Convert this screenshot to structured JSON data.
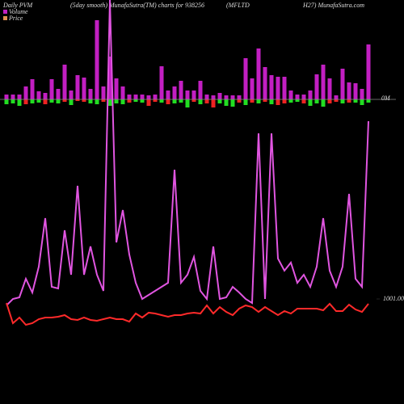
{
  "chart_data": {
    "type": "pvm",
    "title": [
      "Daily PVM",
      "(5day smooth) MunafaSutra(TM) charts for 938256",
      "(MFLTD",
      "H27) MunafaSutra.com"
    ],
    "ylim": [
      0,
      123
    ],
    "yticks": [
      {
        "value": 0,
        "label": "0M"
      }
    ],
    "price_lim": [
      981,
      1041
    ],
    "price_ticks": [
      {
        "value": 1001,
        "label": "1001.00"
      }
    ],
    "y2lim": [
      0,
      490
    ],
    "series": [
      {
        "name": "Volume",
        "color": "#c21fc2",
        "legend_color": "#c21fc2",
        "values": [
          6,
          6,
          6,
          16,
          25,
          10,
          8,
          25,
          13,
          43,
          11,
          30,
          27,
          13,
          98,
          16,
          53,
          26,
          16,
          6,
          6,
          6,
          5,
          6,
          41,
          11,
          16,
          23,
          11,
          11,
          23,
          6,
          5,
          8,
          5,
          5,
          5,
          51,
          26,
          63,
          40,
          30,
          28,
          28,
          11,
          6,
          6,
          11,
          31,
          43,
          26,
          5,
          38,
          21,
          20,
          13,
          68
        ]
      },
      {
        "name": "Price",
        "color": "#ff2a2a",
        "legend_color": "#e09050",
        "values": [
          1000.17,
          996.0,
          997.17,
          995.67,
          996.0,
          996.83,
          997.17,
          997.17,
          997.33,
          997.67,
          996.83,
          996.67,
          997.17,
          996.67,
          996.5,
          996.83,
          997.17,
          996.83,
          996.83,
          996.33,
          998.0,
          997.17,
          998.17,
          998.0,
          997.67,
          997.33,
          997.67,
          997.67,
          998.0,
          998.17,
          998.0,
          999.67,
          998.0,
          999.33,
          998.33,
          997.67,
          999.0,
          999.67,
          999.33,
          998.33,
          999.33,
          998.5,
          997.67,
          998.5,
          998.0,
          999.0,
          999.0,
          999.0,
          999.0,
          998.67,
          1000.0,
          998.5,
          998.5,
          999.83,
          998.83,
          998.33,
          1000.0
        ]
      }
    ],
    "volume_line": {
      "color": "#e055e0",
      "axis": "y2",
      "values": [
        112,
        120,
        122,
        145,
        128,
        160,
        220,
        135,
        133,
        205,
        150,
        260,
        150,
        185,
        150,
        130,
        490,
        190,
        230,
        175,
        140,
        120,
        125,
        130,
        135,
        140,
        280,
        140,
        150,
        172,
        130,
        120,
        185,
        120,
        122,
        135,
        128,
        120,
        115,
        325,
        120,
        325,
        170,
        155,
        165,
        140,
        150,
        135,
        160,
        220,
        155,
        135,
        160,
        250,
        145,
        135,
        340
      ]
    },
    "flow": {
      "values": [
        -6,
        -5,
        -8,
        -6,
        -5,
        -4,
        -6,
        -4,
        -5,
        -3,
        -7,
        -2,
        -3,
        -5,
        -6,
        -3,
        -8,
        -5,
        -6,
        -4,
        -3,
        -4,
        -8,
        -3,
        -4,
        -6,
        -5,
        -4,
        -10,
        -3,
        -6,
        -5,
        -10,
        -5,
        -8,
        -9,
        -4,
        -7,
        -4,
        -5,
        -3,
        -6,
        -7,
        -5,
        -4,
        -3,
        -5,
        -8,
        -5,
        -9,
        -5,
        -3,
        -5,
        -4,
        -4,
        -7,
        -4
      ],
      "colors": [
        "#22dd22",
        "#22dd22",
        "#22dd22",
        "#ee2222",
        "#22dd22",
        "#22dd22",
        "#ee2222",
        "#22dd22",
        "#22dd22",
        "#ee2222",
        "#22dd22",
        "#ee2222",
        "#ee2222",
        "#22dd22",
        "#22dd22",
        "#ee2222",
        "#22dd22",
        "#22dd22",
        "#22dd22",
        "#ee2222",
        "#22dd22",
        "#22dd22",
        "#ee2222",
        "#ee2222",
        "#22dd22",
        "#ee2222",
        "#22dd22",
        "#22dd22",
        "#22dd22",
        "#ee2222",
        "#22dd22",
        "#ee2222",
        "#ee2222",
        "#22dd22",
        "#22dd22",
        "#22dd22",
        "#ee2222",
        "#22dd22",
        "#ee2222",
        "#22dd22",
        "#ee2222",
        "#22dd22",
        "#ee2222",
        "#ee2222",
        "#22dd22",
        "#22dd22",
        "#ee2222",
        "#22dd22",
        "#22dd22",
        "#22dd22",
        "#ee2222",
        "#ee2222",
        "#22dd22",
        "#ee2222",
        "#22dd22",
        "#22dd22",
        "#22dd22"
      ]
    }
  }
}
